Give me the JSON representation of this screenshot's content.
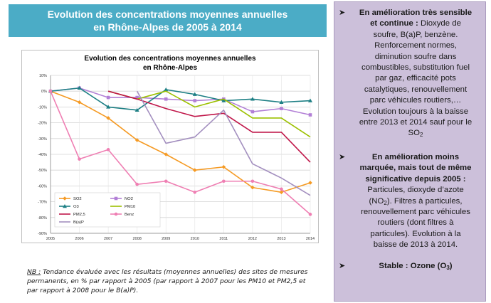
{
  "banner": {
    "line1": "Evolution des concentrations moyennes annuelles",
    "line2": "en Rhône-Alpes de 2005 à 2014"
  },
  "chart_data": {
    "type": "line",
    "title_line1": "Evolution des concentrations moyennes annuelles",
    "title_line2": "en Rhône-Alpes",
    "x": [
      "2005",
      "2006",
      "2007",
      "2008",
      "2009",
      "2010",
      "2011",
      "2012",
      "2013",
      "2014"
    ],
    "ylim": [
      -90,
      10
    ],
    "yticks": [
      10,
      0,
      -10,
      -20,
      -30,
      -40,
      -50,
      -60,
      -70,
      -80,
      -90
    ],
    "ytick_labels": [
      "10%",
      "0%",
      "-10%",
      "-20%",
      "-30%",
      "-40%",
      "-50%",
      "-60%",
      "-70%",
      "-80%",
      "-90%"
    ],
    "grid": true,
    "legend_position": "bottom-left inside",
    "series": [
      {
        "name": "SO2",
        "color": "#f59a23",
        "marker": "diamond",
        "values": [
          0,
          -7,
          -17,
          -31,
          -40,
          -50,
          -48,
          -61,
          -64,
          -58
        ]
      },
      {
        "name": "NO2",
        "color": "#b27fd6",
        "marker": "square",
        "values": [
          0,
          2,
          -4,
          -4,
          -5,
          -6,
          -5,
          -13,
          -11,
          -15
        ]
      },
      {
        "name": "O3",
        "color": "#1d7f84",
        "marker": "triangle",
        "values": [
          0,
          2,
          -10,
          -12,
          1,
          -2,
          -6,
          -5,
          -7,
          -6
        ]
      },
      {
        "name": "PM10",
        "color": "#9cc000",
        "marker": "line",
        "values": [
          null,
          null,
          0,
          -5,
          0,
          -10,
          -5,
          -17,
          -17,
          -29
        ]
      },
      {
        "name": "PM2,5",
        "color": "#c0174a",
        "marker": "line",
        "values": [
          null,
          null,
          0,
          -5,
          -11,
          -16,
          -14,
          -26,
          -26,
          -45
        ]
      },
      {
        "name": "Benz",
        "color": "#ef7fb3",
        "marker": "dot",
        "values": [
          0,
          -43,
          -37,
          -59,
          -57,
          -64,
          -57,
          -57,
          -62,
          -78
        ]
      },
      {
        "name": "B(a)P",
        "color": "#a38fbf",
        "marker": "line",
        "values": [
          null,
          null,
          null,
          0,
          -33,
          -29,
          -12,
          -46,
          -55,
          -66
        ]
      }
    ]
  },
  "note": {
    "nb": "NB :",
    "line1": " Tendance évaluée avec les résultats (moyennes annuelles) des sites de mesures",
    "line2": "permanents,  en % par rapport à 2005 (par rapport à 2007 pour les PM10 et PM2,5 et",
    "line3": "par rapport  à 2008 pour le B(a)P)."
  },
  "panel": {
    "bullet_icon": "arrow-bullet-icon",
    "b1_bold1": "En amélioration très sensible",
    "b1_bold2": "et continue :",
    "b1_p1": " Dioxyde de",
    "b1_l3": "soufre, B(a)P, benzène.",
    "b1_l4": "Renforcement normes,",
    "b1_l5": "diminution soufre dans",
    "b1_l6": "combustibles, substitution fuel",
    "b1_l7": "par gaz, efficacité pots",
    "b1_l8": "catalytiques, renouvellement",
    "b1_l9": "parc véhicules routiers,…",
    "b1_l10": "Evolution toujours à la baisse",
    "b1_l11": "entre 2013 et 2014 sauf pour le",
    "b1_l12": "SO",
    "b1_l12_sub": "2",
    "b2_bold1": "En amélioration moins",
    "b2_bold2": "marquée, mais tout de même",
    "b2_bold3": "significative depuis 2005 :",
    "b2_l4": "Particules, dioxyde d’azote",
    "b2_l5a": "(NO",
    "b2_l5sub": "2",
    "b2_l5b": "). Filtres à particules,",
    "b2_l6": "renouvellement parc véhicules",
    "b2_l7": "routiers (dont filtres à",
    "b2_l8": "particules). Evolution à la",
    "b2_l9": "baisse de 2013 à 2014.",
    "b3_a": "Stable : Ozone (O",
    "b3_sub": "3",
    "b3_b": ")"
  }
}
